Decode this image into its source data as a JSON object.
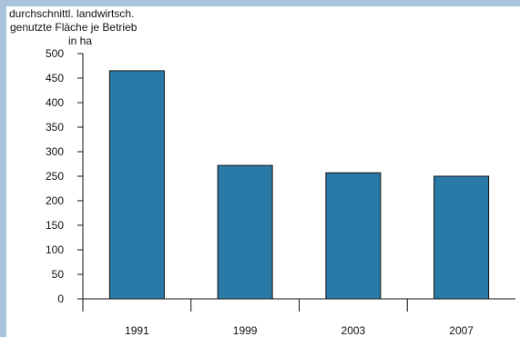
{
  "chart_data": {
    "type": "bar",
    "ylabel_lines": [
      "durchschnittl. landwirtsch.",
      "genutzte Fläche je Betrieb",
      "in ha"
    ],
    "categories": [
      "1991",
      "1999",
      "2003",
      "2007"
    ],
    "values": [
      465,
      272,
      257,
      250
    ],
    "ylim": [
      0,
      500
    ],
    "yticks": [
      0,
      50,
      100,
      150,
      200,
      250,
      300,
      350,
      400,
      450,
      500
    ],
    "grid": false,
    "bar_color": "#2a7aa8",
    "frame_color": "#a9c4da"
  }
}
